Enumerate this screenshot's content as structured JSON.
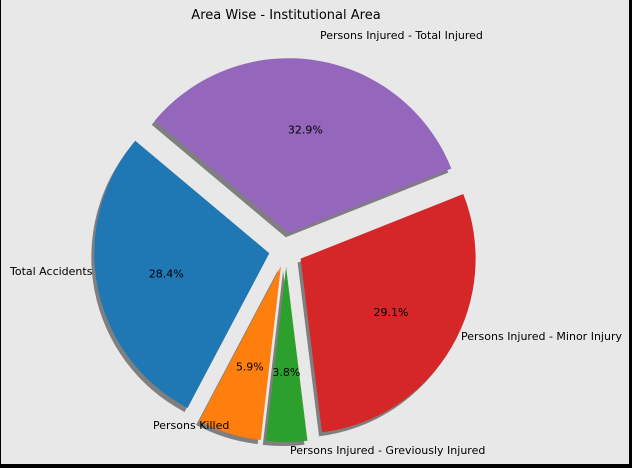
{
  "chart_data": {
    "type": "pie",
    "title": "Area Wise - Institutional Area",
    "labels": [
      "Total Accidents",
      "Persons Killed",
      "Persons Injured - Greviously Injured",
      "Persons Injured - Minor Injury",
      "Persons Injured - Total Injured"
    ],
    "values": [
      28.4,
      5.9,
      3.8,
      29.1,
      32.9
    ],
    "percent_labels": [
      "28.4%",
      "5.9%",
      "3.8%",
      "29.1%",
      "32.9%"
    ],
    "colors": [
      "#1f77b4",
      "#ff7f0e",
      "#2ca02c",
      "#d62728",
      "#9467bd"
    ],
    "start_angle_deg": 140,
    "shadow": true,
    "exploded": true
  }
}
